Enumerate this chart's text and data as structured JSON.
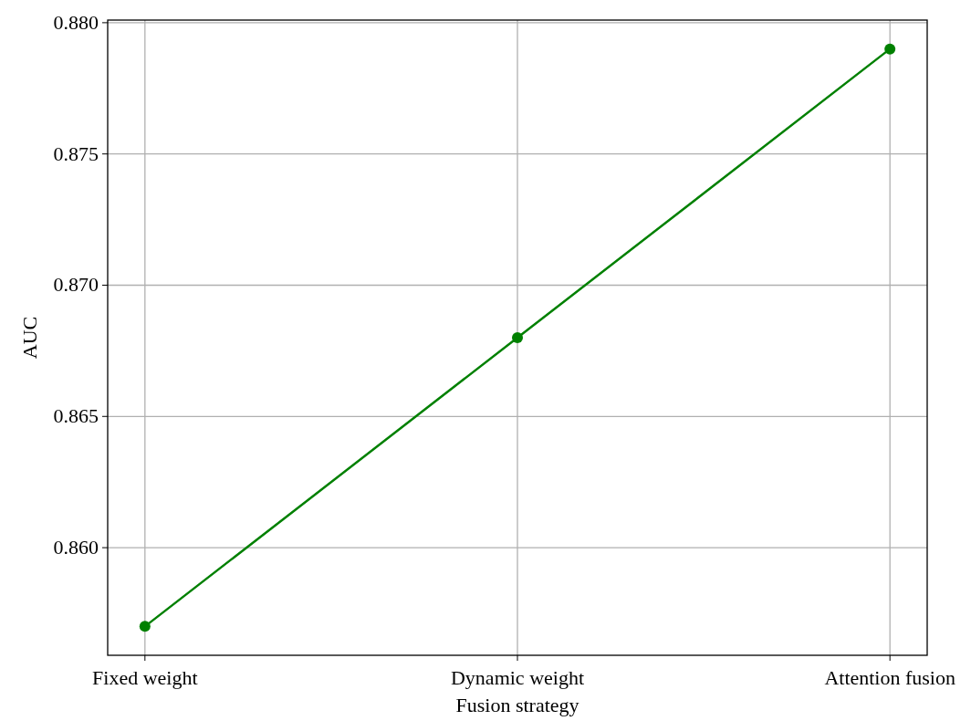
{
  "chart_data": {
    "type": "line",
    "xlabel": "Fusion strategy",
    "ylabel": "AUC",
    "categories": [
      "Fixed weight",
      "Dynamic weight",
      "Attention fusion"
    ],
    "series": [
      {
        "color": "#008000",
        "values": [
          0.857,
          0.868,
          0.879
        ]
      }
    ],
    "ylim": [
      0.8559,
      0.8801
    ],
    "yticks": [
      {
        "value": 0.86,
        "label": "0.860"
      },
      {
        "value": 0.865,
        "label": "0.865"
      },
      {
        "value": 0.87,
        "label": "0.870"
      },
      {
        "value": 0.875,
        "label": "0.875"
      },
      {
        "value": 0.88,
        "label": "0.880"
      }
    ],
    "grid": true,
    "marker": "circle",
    "line_style": "solid"
  }
}
